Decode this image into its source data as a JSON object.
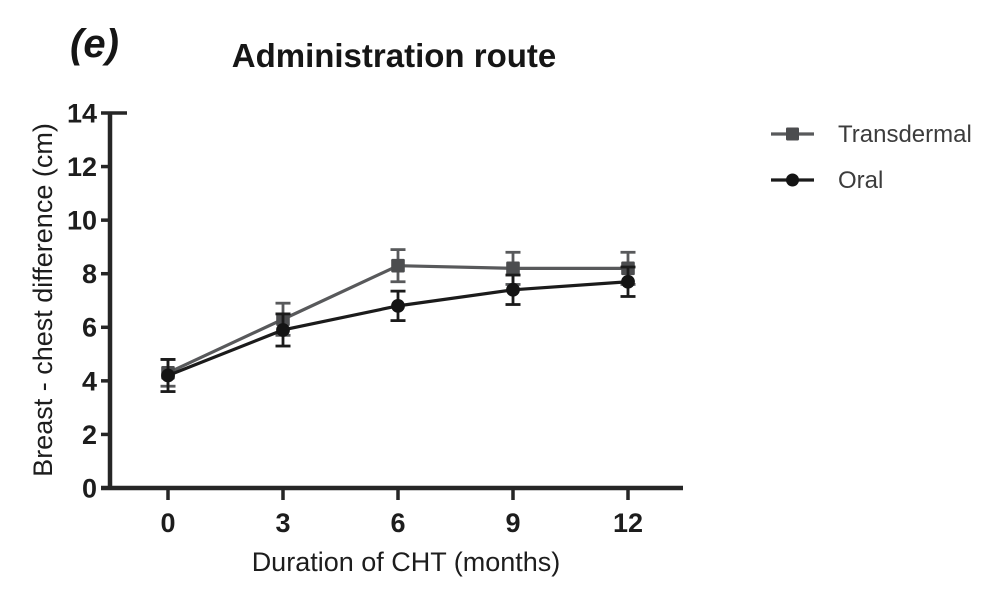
{
  "panel_label": "(e)",
  "title": "Administration route",
  "colors": {
    "axis": "#262626",
    "transdermal": "#58595b",
    "transdermal_marker": "#4c4d4f",
    "oral": "#1b1b1b",
    "oral_marker": "#141414",
    "background": "#ffffff"
  },
  "legend": {
    "items": [
      {
        "label": "Transdermal",
        "marker": "square"
      },
      {
        "label": "Oral",
        "marker": "circle"
      }
    ]
  },
  "chart_data": {
    "type": "line",
    "title": "Administration route",
    "xlabel": "Duration of CHT (months)",
    "ylabel": "Breast - chest difference (cm)",
    "x": [
      0,
      3,
      6,
      9,
      12
    ],
    "xticks": [
      0,
      3,
      6,
      9,
      12
    ],
    "yticks": [
      0,
      2,
      4,
      6,
      8,
      10,
      12,
      14
    ],
    "xlim": [
      -1.5,
      13.5
    ],
    "ylim": [
      0,
      14
    ],
    "grid": false,
    "legend_position": "right",
    "error_bars": true,
    "series": [
      {
        "name": "Transdermal",
        "marker": "square",
        "color": "#58595b",
        "marker_color": "#4c4d4f",
        "values": [
          4.3,
          6.3,
          8.3,
          8.2,
          8.2
        ],
        "errors": [
          0.5,
          0.6,
          0.6,
          0.6,
          0.6
        ]
      },
      {
        "name": "Oral",
        "marker": "circle",
        "color": "#1b1b1b",
        "marker_color": "#141414",
        "values": [
          4.2,
          5.9,
          6.8,
          7.4,
          7.7
        ],
        "errors": [
          0.6,
          0.6,
          0.55,
          0.55,
          0.55
        ]
      }
    ]
  }
}
